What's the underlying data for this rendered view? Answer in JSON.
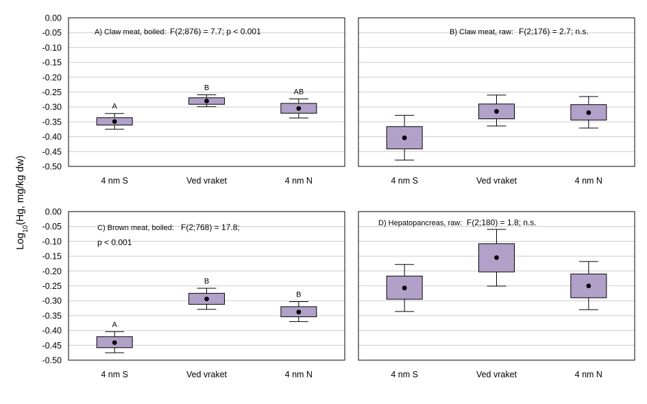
{
  "y_axis_label": {
    "prefix": "Log",
    "sub": "10",
    "suffix": "(Hg, mg/kg dw)"
  },
  "colors": {
    "box_fill": "#b1a1c9",
    "grid": "#cccccc",
    "frame": "#000000"
  },
  "chart_data": [
    {
      "type": "box",
      "panel": "A",
      "title": "A) Claw meat, boiled:",
      "stat_lines": [
        "F(2;876) = 7.7; p < 0.001"
      ],
      "categories": [
        "4 nm S",
        "Ved vraket",
        "4 nm N"
      ],
      "ylim": [
        -0.5,
        0.0
      ],
      "yticks": [
        "0.00",
        "-0.05",
        "-0.10",
        "-0.15",
        "-0.20",
        "-0.25",
        "-0.30",
        "-0.35",
        "-0.40",
        "-0.45",
        "-0.50"
      ],
      "show_yticks": true,
      "grid": true,
      "boxes": [
        {
          "category": "4 nm S",
          "mean": -0.349,
          "q1": -0.361,
          "q3": -0.336,
          "whisker_low": -0.375,
          "whisker_high": -0.322,
          "letter": "A"
        },
        {
          "category": "Ved vraket",
          "mean": -0.28,
          "q1": -0.291,
          "q3": -0.269,
          "whisker_low": -0.299,
          "whisker_high": -0.259,
          "letter": "B"
        },
        {
          "category": "4 nm N",
          "mean": -0.305,
          "q1": -0.321,
          "q3": -0.288,
          "whisker_low": -0.337,
          "whisker_high": -0.273,
          "letter": "AB"
        }
      ]
    },
    {
      "type": "box",
      "panel": "B",
      "title": "B) Claw meat, raw:",
      "stat_lines": [
        "F(2;176) = 2.7; n.s."
      ],
      "categories": [
        "4 nm S",
        "Ved vraket",
        "4 nm N"
      ],
      "ylim": [
        -0.5,
        0.0
      ],
      "yticks": [],
      "show_yticks": false,
      "grid": true,
      "boxes": [
        {
          "category": "4 nm S",
          "mean": -0.404,
          "q1": -0.441,
          "q3": -0.366,
          "whisker_low": -0.479,
          "whisker_high": -0.328,
          "letter": ""
        },
        {
          "category": "Ved vraket",
          "mean": -0.315,
          "q1": -0.34,
          "q3": -0.29,
          "whisker_low": -0.364,
          "whisker_high": -0.26,
          "letter": ""
        },
        {
          "category": "4 nm N",
          "mean": -0.319,
          "q1": -0.344,
          "q3": -0.292,
          "whisker_low": -0.371,
          "whisker_high": -0.265,
          "letter": ""
        }
      ]
    },
    {
      "type": "box",
      "panel": "C",
      "title": "C) Brown meat, boiled:",
      "stat_lines": [
        "F(2;768) = 17.8;",
        "p < 0.001"
      ],
      "categories": [
        "4 nm S",
        "Ved vraket",
        "4 nm N"
      ],
      "ylim": [
        -0.5,
        0.0
      ],
      "yticks": [
        "0.00",
        "-0.05",
        "-0.10",
        "-0.15",
        "-0.20",
        "-0.25",
        "-0.30",
        "-0.35",
        "-0.40",
        "-0.45",
        "-0.50"
      ],
      "show_yticks": true,
      "grid": true,
      "boxes": [
        {
          "category": "4 nm S",
          "mean": -0.441,
          "q1": -0.458,
          "q3": -0.421,
          "whisker_low": -0.475,
          "whisker_high": -0.404,
          "letter": "A"
        },
        {
          "category": "Ved vraket",
          "mean": -0.294,
          "q1": -0.312,
          "q3": -0.275,
          "whisker_low": -0.329,
          "whisker_high": -0.258,
          "letter": "B"
        },
        {
          "category": "4 nm N",
          "mean": -0.338,
          "q1": -0.354,
          "q3": -0.32,
          "whisker_low": -0.37,
          "whisker_high": -0.303,
          "letter": "B"
        }
      ]
    },
    {
      "type": "box",
      "panel": "D",
      "title": "D) Hepatopancreas, raw:",
      "stat_lines": [
        "F(2;180) = 1.8; n.s."
      ],
      "categories": [
        "4 nm S",
        "Ved vraket",
        "4 nm N"
      ],
      "ylim": [
        -0.5,
        0.0
      ],
      "yticks": [],
      "show_yticks": false,
      "grid": true,
      "boxes": [
        {
          "category": "4 nm S",
          "mean": -0.257,
          "q1": -0.295,
          "q3": -0.217,
          "whisker_low": -0.336,
          "whisker_high": -0.178,
          "letter": ""
        },
        {
          "category": "Ved vraket",
          "mean": -0.155,
          "q1": -0.203,
          "q3": -0.108,
          "whisker_low": -0.251,
          "whisker_high": -0.06,
          "letter": ""
        },
        {
          "category": "4 nm N",
          "mean": -0.25,
          "q1": -0.29,
          "q3": -0.21,
          "whisker_low": -0.33,
          "whisker_high": -0.168,
          "letter": ""
        }
      ]
    }
  ]
}
